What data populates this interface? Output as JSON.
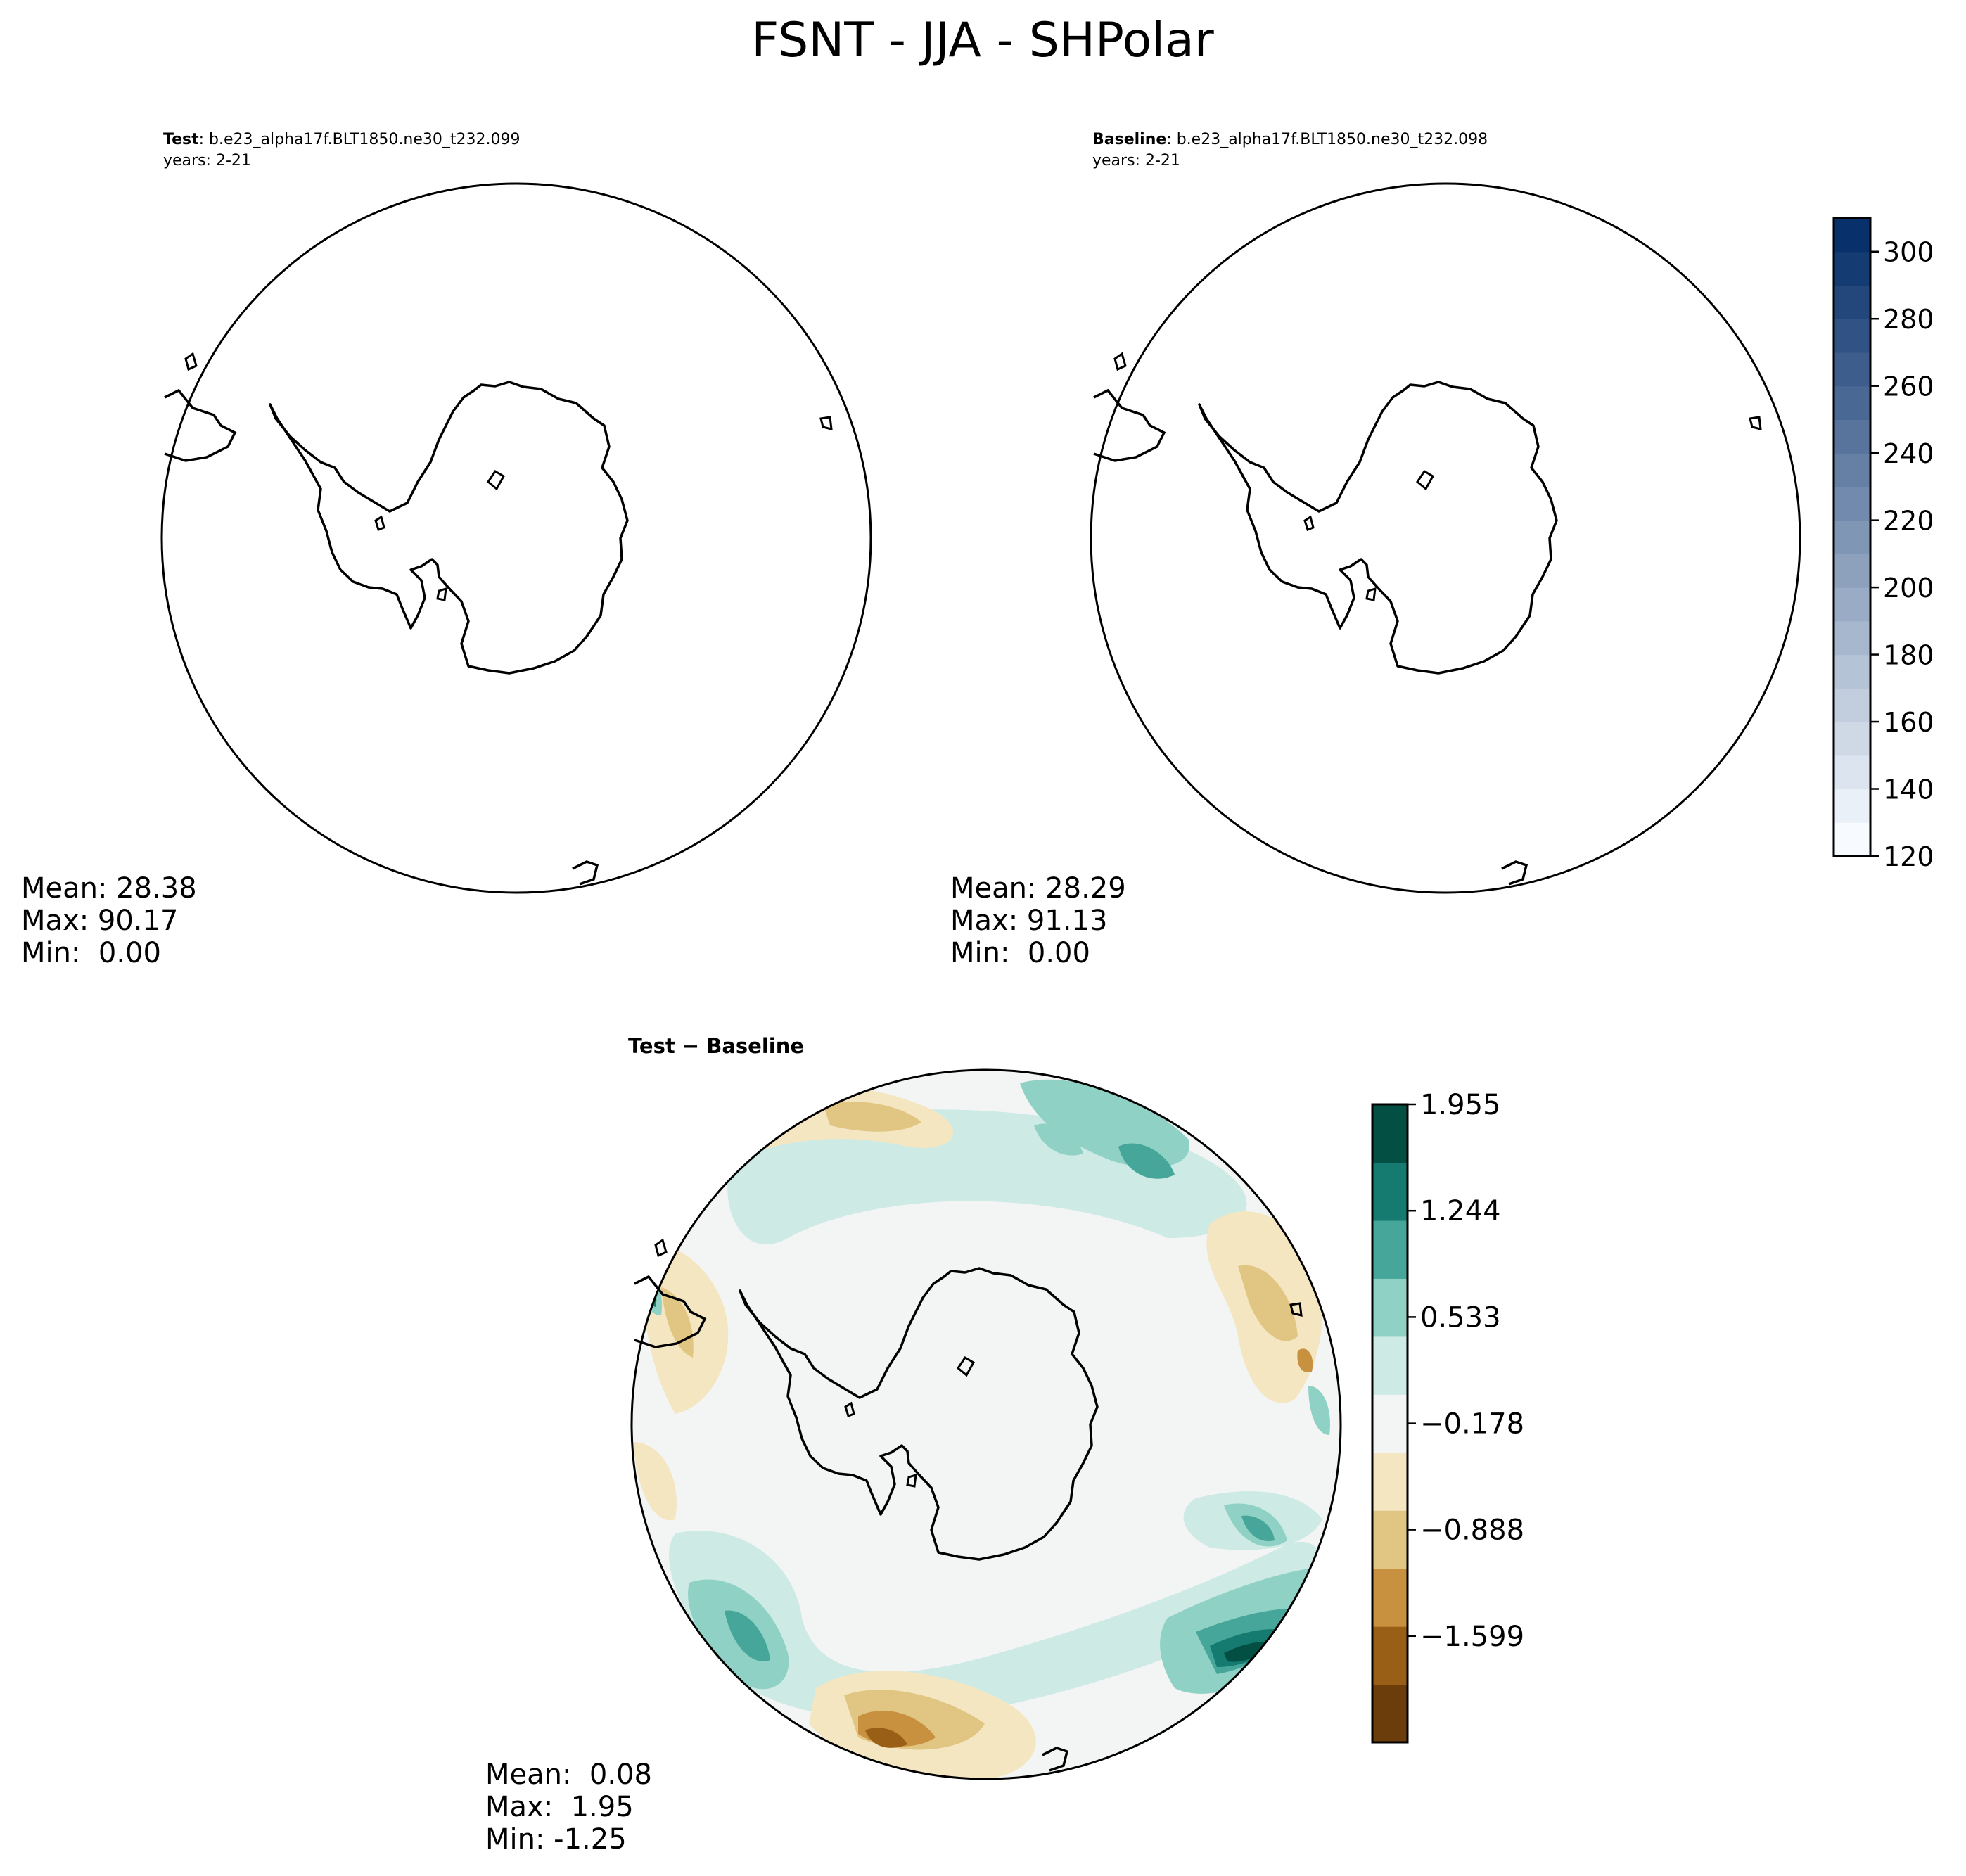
{
  "title": "FSNT - JJA - SHPolar",
  "colors": {
    "coastline": "#000000",
    "circle": "#000000",
    "ocean_neutral": "#f3f5f4"
  },
  "chart_data": [
    {
      "type": "heatmap",
      "projection": "south-polar-stereographic",
      "label_bold": "Test",
      "label_rest": ": b.e23_alpha17f.BLT1850.ne30_t232.099",
      "years": "years: 2-21",
      "stats": {
        "mean": "Mean: 28.38",
        "max": "Max: 90.17",
        "min": "Min:  0.00"
      },
      "values": {
        "mean": 28.38,
        "max": 90.17,
        "min": 0.0
      },
      "filled": false
    },
    {
      "type": "heatmap",
      "projection": "south-polar-stereographic",
      "label_bold": "Baseline",
      "label_rest": ": b.e23_alpha17f.BLT1850.ne30_t232.098",
      "years": "years: 2-21",
      "stats": {
        "mean": "Mean: 28.29",
        "max": "Max: 91.13",
        "min": "Min:  0.00"
      },
      "values": {
        "mean": 28.29,
        "max": 91.13,
        "min": 0.0
      },
      "filled": false,
      "colorbar": {
        "range": [
          120,
          310
        ],
        "tick_labels": [
          "120",
          "140",
          "160",
          "180",
          "200",
          "220",
          "240",
          "260",
          "280",
          "300"
        ],
        "levels": 19,
        "colormap": "Blues",
        "color_low": "#f7fbff",
        "color_high": "#08306b"
      }
    },
    {
      "type": "heatmap",
      "projection": "south-polar-stereographic",
      "label_bold": "Test",
      "label_rest": " − Baseline",
      "stats": {
        "mean": "Mean:  0.08",
        "max": "Max:  1.95",
        "min": "Min: -1.25"
      },
      "values": {
        "mean": 0.08,
        "max": 1.95,
        "min": -1.25
      },
      "filled": true,
      "colorbar": {
        "range": [
          -2.31,
          1.955
        ],
        "tick_labels": [
          "−1.599",
          "−0.888",
          "−0.178",
          "0.533",
          "1.244",
          "1.955"
        ],
        "colors": [
          "#6a3d0b",
          "#9a5f17",
          "#c8913f",
          "#e1c583",
          "#f5e6c2",
          "#f3f5f4",
          "#cdeae5",
          "#8fd1c4",
          "#46a69a",
          "#157a70",
          "#034f43"
        ],
        "colormap": "BrBG"
      }
    }
  ]
}
